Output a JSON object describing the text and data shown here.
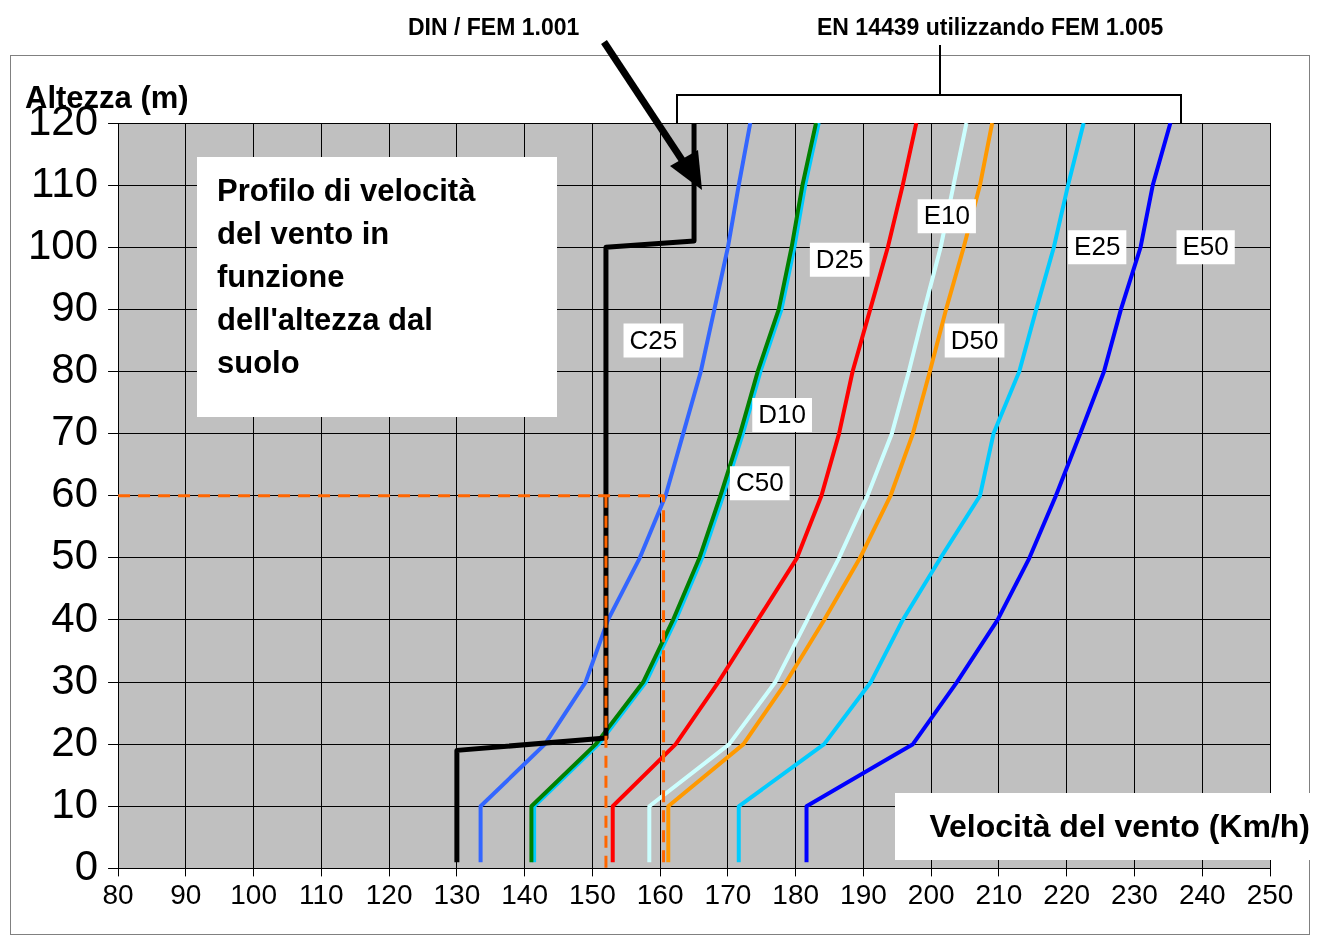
{
  "chart_data": {
    "type": "line",
    "title": "Profilo di velocità del vento in funzione dell'altezza dal suolo",
    "xlabel": "Velocità del vento (Km/h)",
    "ylabel": "Altezza (m)",
    "annotations": [
      "EN 14439 utilizzando FEM 1.005"
    ],
    "xlim": [
      80,
      250
    ],
    "xticks": [
      80,
      90,
      100,
      110,
      120,
      130,
      140,
      150,
      160,
      170,
      180,
      190,
      200,
      210,
      220,
      230,
      240,
      250
    ],
    "ylim": [
      0,
      120
    ],
    "yticks": [
      0,
      10,
      20,
      30,
      40,
      50,
      60,
      70,
      80,
      90,
      100,
      110,
      120
    ],
    "grid": true,
    "legend": false,
    "marker": "none",
    "series": [
      {
        "name": "DIN / FEM 1.001",
        "color": "#000000",
        "x": [
          130,
          130,
          152,
          152,
          165,
          165
        ],
        "values": [
          1,
          19,
          21,
          100,
          101,
          120
        ]
      },
      {
        "name": "C25",
        "color": "#3366ff",
        "x": [
          133.5,
          133.5,
          143,
          149,
          152.3,
          157,
          160.8,
          163.4,
          166,
          168,
          170,
          171.6,
          173.3
        ],
        "values": [
          1,
          10,
          20,
          30,
          40,
          50,
          60,
          70,
          80,
          90,
          100,
          110,
          120
        ]
      },
      {
        "name": "C50",
        "color": "#008000",
        "x": [
          141,
          141,
          150.5,
          157.5,
          161.9,
          165.8,
          168.9,
          171.8,
          174.4,
          177.5,
          179.4,
          181,
          183
        ],
        "values": [
          1,
          10,
          20,
          30,
          40,
          50,
          60,
          70,
          80,
          90,
          100,
          110,
          120
        ]
      },
      {
        "name": "D10",
        "color": "#00ccff",
        "x": [
          141.4,
          141.4,
          150.9,
          157.9,
          162.3,
          166.2,
          169.3,
          172.2,
          174.8,
          177.9,
          179.8,
          181.4,
          183.4
        ],
        "values": [
          1,
          10,
          20,
          30,
          40,
          50,
          60,
          70,
          80,
          90,
          100,
          110,
          120
        ]
      },
      {
        "name": "D25",
        "color": "#ff0000",
        "x": [
          153,
          153,
          162.3,
          168.6,
          174.4,
          180.2,
          183.8,
          186.4,
          188.4,
          191,
          193.6,
          195.8,
          197.8
        ],
        "values": [
          1,
          10,
          20,
          30,
          40,
          50,
          60,
          70,
          80,
          90,
          100,
          110,
          120
        ]
      },
      {
        "name": "E10",
        "color": "#ccffff",
        "x": [
          158.4,
          158.4,
          170.2,
          177,
          181.7,
          186.4,
          190.6,
          194.2,
          196.7,
          199,
          201.4,
          203.3,
          205.2
        ],
        "values": [
          1,
          10,
          20,
          30,
          40,
          50,
          60,
          70,
          80,
          90,
          100,
          110,
          120
        ]
      },
      {
        "name": "D50",
        "color": "#ff9900",
        "x": [
          161.2,
          161.2,
          172.3,
          178.6,
          184.2,
          189.5,
          194,
          197.3,
          199.8,
          202.2,
          204.8,
          207.2,
          209
        ],
        "values": [
          1,
          10,
          20,
          30,
          40,
          50,
          60,
          70,
          80,
          90,
          100,
          110,
          120
        ]
      },
      {
        "name": "E25",
        "color": "#00ccff",
        "x": [
          171.6,
          171.6,
          184.2,
          191.1,
          195.8,
          201.4,
          207.2,
          209.2,
          213,
          215.5,
          218.1,
          220.2,
          222.5
        ],
        "values": [
          1,
          10,
          20,
          30,
          40,
          50,
          60,
          70,
          80,
          90,
          100,
          110,
          120
        ]
      },
      {
        "name": "E50",
        "color": "#0000ff",
        "x": [
          181.6,
          181.6,
          197.3,
          203.8,
          209.8,
          214.5,
          218.4,
          222,
          225.5,
          228,
          230.9,
          232.7,
          235.3
        ],
        "values": [
          1,
          10,
          20,
          30,
          40,
          50,
          60,
          70,
          80,
          90,
          100,
          110,
          120
        ]
      },
      {
        "color": "#ff6600",
        "line_style": "dashed",
        "x": [
          80,
          160.5,
          160.5
        ],
        "values": [
          60,
          60,
          0
        ]
      },
      {
        "color": "#ff6600",
        "line_style": "dashed",
        "x": [
          152,
          152
        ],
        "values": [
          60,
          0
        ]
      }
    ]
  }
}
